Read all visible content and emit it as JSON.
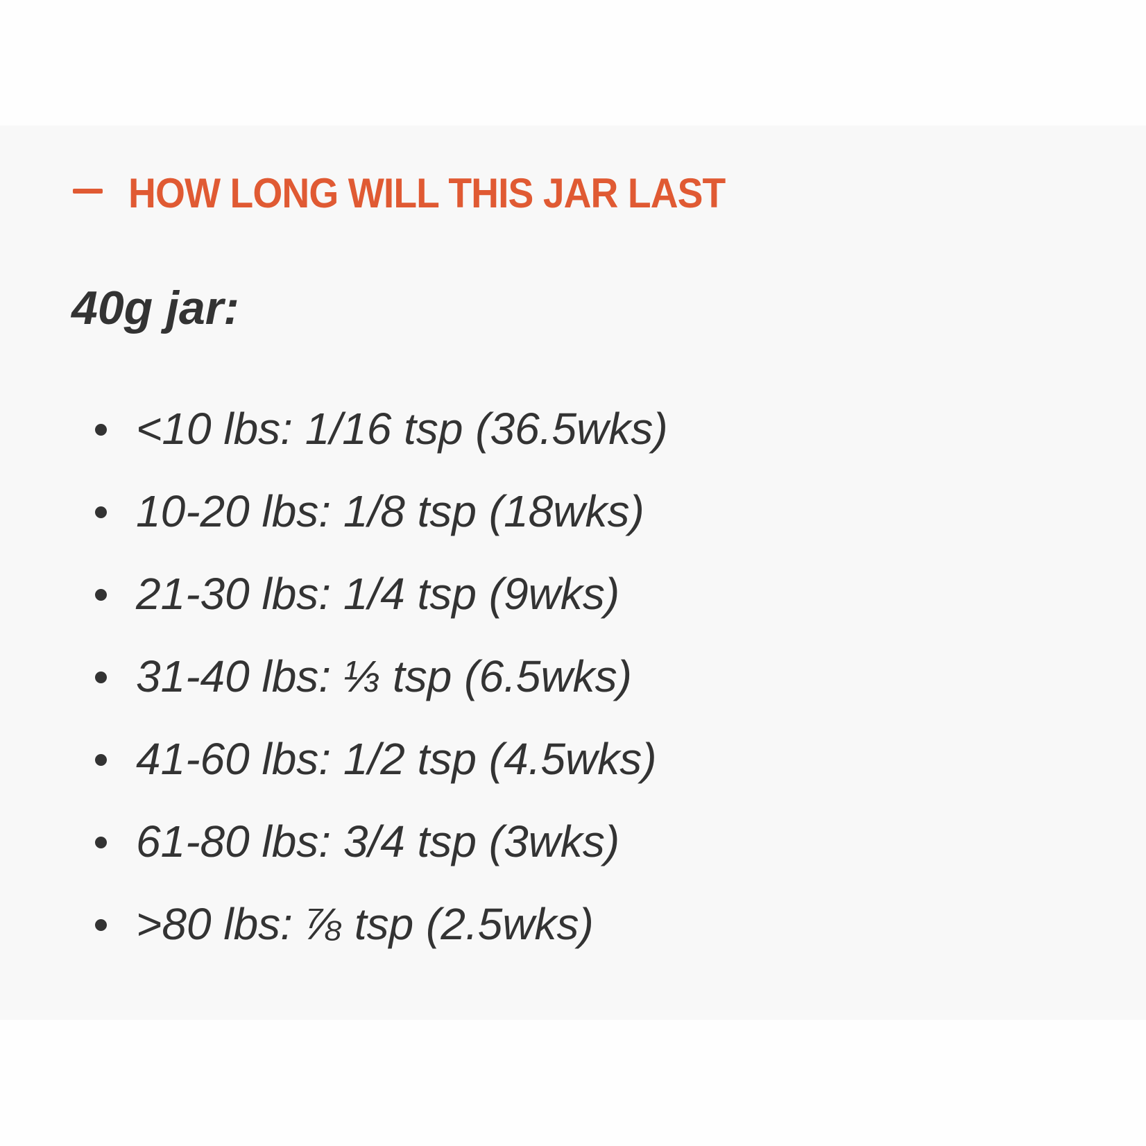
{
  "section": {
    "title": "HOW LONG WILL THIS JAR LAST",
    "toggle_icon": "minus-icon",
    "accent_color": "#e05a33",
    "subheading": "40g jar:",
    "items": [
      "<10 lbs: 1/16 tsp (36.5wks)",
      "10-20 lbs: 1/8 tsp (18wks)",
      "21-30 lbs: 1/4 tsp (9wks)",
      "31-40 lbs: ⅓ tsp (6.5wks)",
      "41-60 lbs: 1/2 tsp (4.5wks)",
      "61-80 lbs: 3/4 tsp (3wks)",
      ">80 lbs: ⅞ tsp (2.5wks)"
    ]
  }
}
